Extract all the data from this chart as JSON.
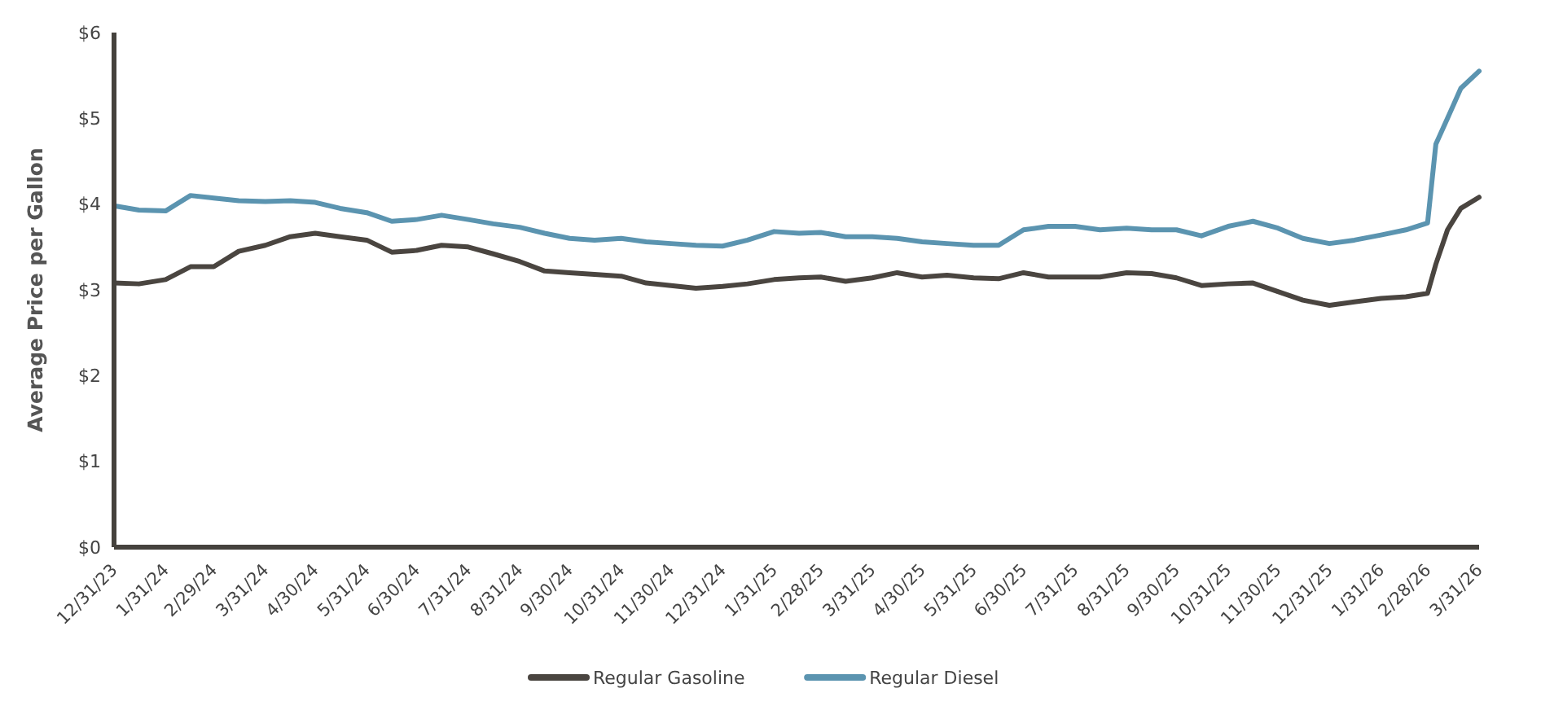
{
  "chart_data": {
    "type": "line",
    "ylabel": "Average Price per Gallon",
    "x": [
      "2023-12-31",
      "2024-01-15",
      "2024-01-31",
      "2024-02-15",
      "2024-02-29",
      "2024-03-15",
      "2024-03-31",
      "2024-04-15",
      "2024-04-30",
      "2024-05-15",
      "2024-05-31",
      "2024-06-15",
      "2024-06-30",
      "2024-07-15",
      "2024-07-31",
      "2024-08-15",
      "2024-08-31",
      "2024-09-15",
      "2024-09-30",
      "2024-10-15",
      "2024-10-31",
      "2024-11-15",
      "2024-11-30",
      "2024-12-15",
      "2024-12-31",
      "2025-01-15",
      "2025-01-31",
      "2025-02-15",
      "2025-02-28",
      "2025-03-15",
      "2025-03-31",
      "2025-04-15",
      "2025-04-30",
      "2025-05-15",
      "2025-05-31",
      "2025-06-15",
      "2025-06-30",
      "2025-07-15",
      "2025-07-31",
      "2025-08-15",
      "2025-08-31",
      "2025-09-15",
      "2025-09-30",
      "2025-10-15",
      "2025-10-31",
      "2025-11-15",
      "2025-11-30",
      "2025-12-15",
      "2025-12-31",
      "2026-01-15",
      "2026-01-31",
      "2026-02-15",
      "2026-02-28",
      "2026-03-05",
      "2026-03-12",
      "2026-03-20",
      "2026-03-31"
    ],
    "series": [
      {
        "name": "Regular Gasoline",
        "color": "#4a4540",
        "values": [
          3.08,
          3.07,
          3.12,
          3.27,
          3.27,
          3.45,
          3.52,
          3.62,
          3.66,
          3.62,
          3.58,
          3.44,
          3.46,
          3.52,
          3.5,
          3.42,
          3.33,
          3.22,
          3.2,
          3.18,
          3.16,
          3.08,
          3.05,
          3.02,
          3.04,
          3.07,
          3.12,
          3.14,
          3.15,
          3.1,
          3.14,
          3.2,
          3.15,
          3.17,
          3.14,
          3.13,
          3.2,
          3.15,
          3.15,
          3.15,
          3.2,
          3.19,
          3.14,
          3.05,
          3.07,
          3.08,
          2.98,
          2.88,
          2.82,
          2.86,
          2.9,
          2.92,
          2.96,
          3.3,
          3.7,
          3.95,
          4.08
        ]
      },
      {
        "name": "Regular Diesel",
        "color": "#5b94b0",
        "values": [
          3.98,
          3.93,
          3.92,
          4.1,
          4.07,
          4.04,
          4.03,
          4.04,
          4.02,
          3.95,
          3.9,
          3.8,
          3.82,
          3.87,
          3.82,
          3.77,
          3.73,
          3.66,
          3.6,
          3.58,
          3.6,
          3.56,
          3.54,
          3.52,
          3.51,
          3.58,
          3.68,
          3.66,
          3.67,
          3.62,
          3.62,
          3.6,
          3.56,
          3.54,
          3.52,
          3.52,
          3.7,
          3.74,
          3.74,
          3.7,
          3.72,
          3.7,
          3.7,
          3.63,
          3.74,
          3.8,
          3.72,
          3.6,
          3.54,
          3.58,
          3.64,
          3.7,
          3.78,
          4.7,
          5.0,
          5.35,
          5.55
        ]
      }
    ],
    "xlim": [
      "2023-12-31",
      "2026-03-31"
    ],
    "xticks": [
      {
        "value": "2023-12-31",
        "label": "12/31/23"
      },
      {
        "value": "2024-01-31",
        "label": "1/31/24"
      },
      {
        "value": "2024-02-29",
        "label": "2/29/24"
      },
      {
        "value": "2024-03-31",
        "label": "3/31/24"
      },
      {
        "value": "2024-04-30",
        "label": "4/30/24"
      },
      {
        "value": "2024-05-31",
        "label": "5/31/24"
      },
      {
        "value": "2024-06-30",
        "label": "6/30/24"
      },
      {
        "value": "2024-07-31",
        "label": "7/31/24"
      },
      {
        "value": "2024-08-31",
        "label": "8/31/24"
      },
      {
        "value": "2024-09-30",
        "label": "9/30/24"
      },
      {
        "value": "2024-10-31",
        "label": "10/31/24"
      },
      {
        "value": "2024-11-30",
        "label": "11/30/24"
      },
      {
        "value": "2024-12-31",
        "label": "12/31/24"
      },
      {
        "value": "2025-01-31",
        "label": "1/31/25"
      },
      {
        "value": "2025-02-28",
        "label": "2/28/25"
      },
      {
        "value": "2025-03-31",
        "label": "3/31/25"
      },
      {
        "value": "2025-04-30",
        "label": "4/30/25"
      },
      {
        "value": "2025-05-31",
        "label": "5/31/25"
      },
      {
        "value": "2025-06-30",
        "label": "6/30/25"
      },
      {
        "value": "2025-07-31",
        "label": "7/31/25"
      },
      {
        "value": "2025-08-31",
        "label": "8/31/25"
      },
      {
        "value": "2025-09-30",
        "label": "9/30/25"
      },
      {
        "value": "2025-10-31",
        "label": "10/31/25"
      },
      {
        "value": "2025-11-30",
        "label": "11/30/25"
      },
      {
        "value": "2025-12-31",
        "label": "12/31/25"
      },
      {
        "value": "2026-01-31",
        "label": "1/31/26"
      },
      {
        "value": "2026-02-28",
        "label": "2/28/26"
      },
      {
        "value": "2026-03-31",
        "label": "3/31/26"
      }
    ],
    "ylim": [
      0,
      6
    ],
    "yticks": [
      {
        "value": 0,
        "label": "$0"
      },
      {
        "value": 1,
        "label": "$1"
      },
      {
        "value": 2,
        "label": "$2"
      },
      {
        "value": 3,
        "label": "$3"
      },
      {
        "value": 4,
        "label": "$4"
      },
      {
        "value": 5,
        "label": "$5"
      },
      {
        "value": 6,
        "label": "$6"
      }
    ],
    "grid": false,
    "legend": "bottom",
    "line_style": "solid"
  }
}
